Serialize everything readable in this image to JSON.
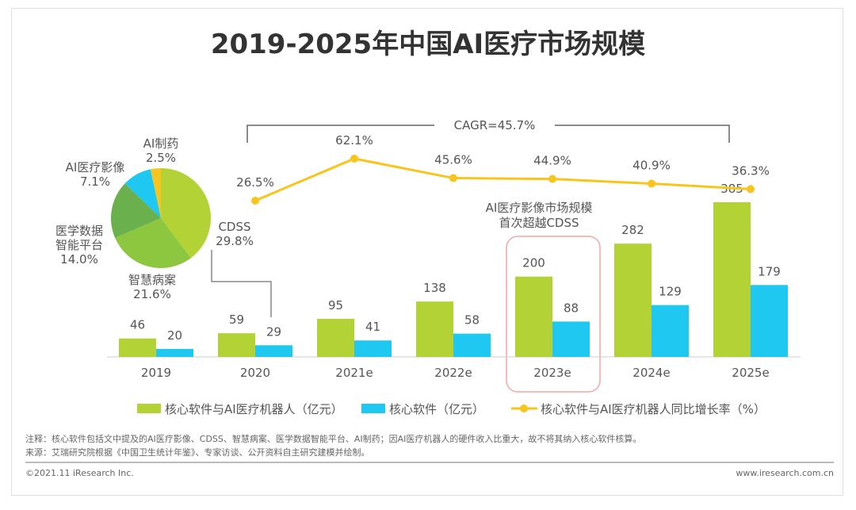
{
  "chart_data": {
    "title": "2019-2025年中国AI医疗市场规模",
    "type": "bar",
    "categories": [
      "2019",
      "2020",
      "2021e",
      "2022e",
      "2023e",
      "2024e",
      "2025e"
    ],
    "series": [
      {
        "name": "核心软件与AI医疗机器人（亿元）",
        "type": "bar",
        "color": "#b2d235",
        "values": [
          46,
          59,
          95,
          138,
          200,
          282,
          385
        ]
      },
      {
        "name": "核心软件（亿元）",
        "type": "bar",
        "color": "#1ec8f0",
        "values": [
          20,
          29,
          41,
          58,
          88,
          129,
          179
        ]
      },
      {
        "name": "核心软件与AI医疗机器人同比增长率（%）",
        "type": "line",
        "color": "#f7c51e",
        "values": [
          null,
          26.5,
          62.1,
          45.6,
          44.9,
          40.9,
          36.3
        ],
        "labels": [
          "",
          "26.5%",
          "62.1%",
          "45.6%",
          "44.9%",
          "40.9%",
          "36.3%"
        ]
      }
    ],
    "cagr_label": "CAGR=45.7%",
    "annotation": [
      "AI医疗影像市场规模",
      "首次超越CDSS"
    ],
    "highlight_category": "2023e",
    "legend_placement": "bottom",
    "pie": {
      "slices": [
        {
          "label": "CDSS",
          "value": 29.8,
          "text": "29.8%",
          "color": "#b2d235"
        },
        {
          "label": "智慧病案",
          "value": 21.6,
          "text": "21.6%",
          "color": "#8dc63f"
        },
        {
          "label": "医学数据智能平台",
          "lines": [
            "医学数据",
            "智能平台"
          ],
          "value": 14.0,
          "text": "14.0%",
          "color": "#6ab04c"
        },
        {
          "label": "AI医疗影像",
          "value": 7.1,
          "text": "7.1%",
          "color": "#1ec8f0"
        },
        {
          "label": "AI制药",
          "value": 2.5,
          "text": "2.5%",
          "color": "#f7c51e"
        }
      ]
    }
  },
  "notes": {
    "note": "注释：核心软件包括文中提及的AI医疗影像、CDSS、智慧病案、医学数据智能平台、AI制药；因AI医疗机器人的硬件收入比重大，故不将其纳入核心软件核算。",
    "source": "来源：艾瑞研究院根据《中国卫生统计年鉴》、专家访谈、公开资料自主研究建模并绘制。"
  },
  "footer": {
    "copyright": "©2021.11 iResearch Inc.",
    "website": "www.iresearch.com.cn"
  }
}
